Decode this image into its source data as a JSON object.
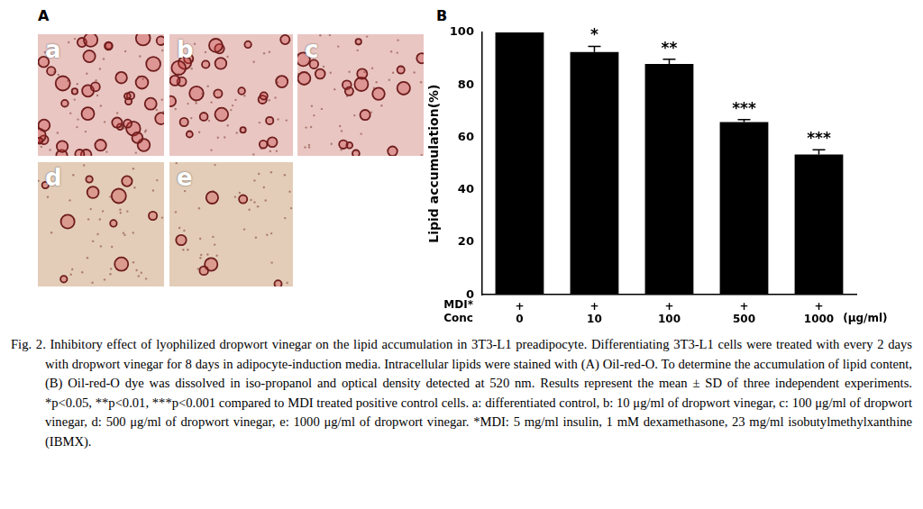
{
  "chart_data": {
    "type": "bar",
    "panel_label": "B",
    "y_label": "Lipid accumulation(%)",
    "categories": [
      "0",
      "10",
      "100",
      "500",
      "1000"
    ],
    "values": [
      100,
      92.5,
      88,
      65.8,
      53.5
    ],
    "errors": [
      0,
      2.2,
      1.8,
      1,
      1.8
    ],
    "significance": [
      null,
      "*",
      "**",
      "***",
      "***"
    ],
    "treatment_row": {
      "label": "MDI*",
      "marks": [
        "+",
        "+",
        "+",
        "+",
        "+"
      ]
    },
    "x_label": "Conc",
    "x_unit": "(μg/ml)",
    "color": "#000000",
    "ylim": [
      0,
      100
    ],
    "yticks": [
      0,
      20,
      40,
      60,
      80,
      100
    ],
    "grid": false
  },
  "figure": {
    "panel_label": "A",
    "image_labels": [
      "a",
      "b",
      "c",
      "d",
      "e"
    ],
    "caption": "Fig. 2. Inhibitory effect of lyophilized dropwort vinegar on the lipid accumulation in 3T3-L1 preadipocyte. Differentiating 3T3-L1 cells were treated with every 2 days with dropwort vinegar for 8 days in adipocyte-induction media. Intracellular lipids were stained with (A) Oil-red-O. To determine the accumulation of lipid content, (B) Oil-red-O dye was dissolved in iso-propanol and optical density detected at 520 nm. Results represent the mean ± SD of three independent experiments. *p<0.05, **p<0.01, ***p<0.001 compared to MDI treated positive control cells. a: differentiated control, b: 10 μg/ml of dropwort vinegar, c: 100 μg/ml of dropwort vinegar, d: 500 μg/ml of dropwort vinegar, e: 1000 μg/ml of dropwort vinegar. *MDI: 5 mg/ml insulin, 1 mM dexamethasone, 23 mg/ml isobutylmethylxanthine (IBMX)."
  }
}
